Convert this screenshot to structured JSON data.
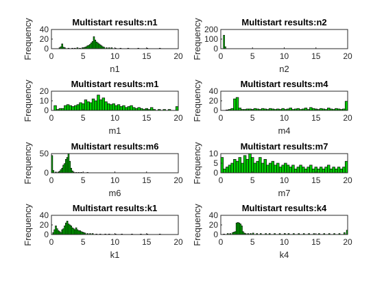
{
  "window": {
    "bar_color": "#00cc00",
    "bar_edge": "#000000"
  },
  "chart_data": [
    {
      "type": "bar",
      "panel": "n1",
      "title": "Multistart results:n1",
      "xlabel": "n1",
      "ylabel": "Frequency",
      "xlim": [
        0,
        20
      ],
      "ylim": [
        0,
        40
      ],
      "xticks": [
        "0",
        "5",
        "10",
        "15",
        "20"
      ],
      "yticks": [
        "0",
        "20",
        "40"
      ],
      "bin_width": 0.2,
      "bins": [
        [
          1.2,
          2
        ],
        [
          1.4,
          4
        ],
        [
          1.6,
          10
        ],
        [
          1.8,
          3
        ],
        [
          2.0,
          2
        ],
        [
          2.6,
          1
        ],
        [
          3.2,
          1
        ],
        [
          3.6,
          1
        ],
        [
          4.0,
          2
        ],
        [
          4.4,
          1
        ],
        [
          4.8,
          2
        ],
        [
          5.0,
          2
        ],
        [
          5.2,
          3
        ],
        [
          5.4,
          4
        ],
        [
          5.6,
          6
        ],
        [
          5.8,
          7
        ],
        [
          6.0,
          9
        ],
        [
          6.2,
          12
        ],
        [
          6.4,
          15
        ],
        [
          6.6,
          25
        ],
        [
          6.8,
          18
        ],
        [
          7.0,
          14
        ],
        [
          7.2,
          12
        ],
        [
          7.4,
          10
        ],
        [
          7.6,
          8
        ],
        [
          7.8,
          6
        ],
        [
          8.0,
          4
        ],
        [
          8.2,
          3
        ],
        [
          8.6,
          2
        ],
        [
          9.0,
          2
        ],
        [
          9.4,
          2
        ],
        [
          10.0,
          1
        ],
        [
          10.8,
          1
        ],
        [
          12.0,
          1
        ],
        [
          13.6,
          1
        ],
        [
          15.0,
          1
        ],
        [
          17.0,
          1
        ]
      ]
    },
    {
      "type": "bar",
      "panel": "n2",
      "title": "Multistart results:n2",
      "xlabel": "n2",
      "ylabel": "Frequency",
      "xlim": [
        0,
        20
      ],
      "ylim": [
        0,
        200
      ],
      "xticks": [
        "0",
        "5",
        "10",
        "15",
        "20"
      ],
      "yticks": [
        "0",
        "100",
        "200"
      ],
      "bin_width": 0.2,
      "bins": [
        [
          0.4,
          140
        ],
        [
          0.6,
          20
        ]
      ]
    },
    {
      "type": "bar",
      "panel": "m1",
      "title": "Multistart results:m1",
      "xlabel": "m1",
      "ylabel": "Frequency",
      "xlim": [
        0,
        20
      ],
      "ylim": [
        0,
        20
      ],
      "xticks": [
        "0",
        "5",
        "10",
        "15",
        "20"
      ],
      "yticks": [
        "0",
        "10",
        "20"
      ],
      "bin_width": 0.4,
      "bins": [
        [
          0.4,
          5
        ],
        [
          0.8,
          1
        ],
        [
          1.2,
          2
        ],
        [
          1.6,
          2
        ],
        [
          2.0,
          5
        ],
        [
          2.4,
          6
        ],
        [
          2.8,
          5
        ],
        [
          3.2,
          4
        ],
        [
          3.6,
          5
        ],
        [
          4.0,
          6
        ],
        [
          4.4,
          8
        ],
        [
          4.8,
          7
        ],
        [
          5.2,
          11
        ],
        [
          5.6,
          9
        ],
        [
          6.0,
          8
        ],
        [
          6.4,
          12
        ],
        [
          6.8,
          10
        ],
        [
          7.2,
          16
        ],
        [
          7.6,
          11
        ],
        [
          8.0,
          13
        ],
        [
          8.4,
          9
        ],
        [
          8.8,
          7
        ],
        [
          9.2,
          6
        ],
        [
          9.6,
          7
        ],
        [
          10.0,
          5
        ],
        [
          10.4,
          6
        ],
        [
          10.8,
          4
        ],
        [
          11.2,
          5
        ],
        [
          11.6,
          3
        ],
        [
          12.0,
          4
        ],
        [
          12.4,
          5
        ],
        [
          12.8,
          3
        ],
        [
          13.2,
          2
        ],
        [
          13.6,
          3
        ],
        [
          14.0,
          2
        ],
        [
          14.4,
          1
        ],
        [
          14.8,
          2
        ],
        [
          15.2,
          1
        ],
        [
          15.6,
          3
        ],
        [
          16.0,
          1
        ],
        [
          16.8,
          1
        ],
        [
          17.6,
          1
        ],
        [
          18.4,
          1
        ],
        [
          19.6,
          4
        ]
      ]
    },
    {
      "type": "bar",
      "panel": "m4",
      "title": "Multistart results:m4",
      "xlabel": "m4",
      "ylabel": "Frequency",
      "xlim": [
        0,
        20
      ],
      "ylim": [
        0,
        40
      ],
      "xticks": [
        "0",
        "5",
        "10",
        "15",
        "20"
      ],
      "yticks": [
        "0",
        "20",
        "40"
      ],
      "bin_width": 0.4,
      "bins": [
        [
          0.8,
          1
        ],
        [
          1.2,
          2
        ],
        [
          1.6,
          4
        ],
        [
          2.0,
          24
        ],
        [
          2.4,
          27
        ],
        [
          2.8,
          5
        ],
        [
          3.2,
          2
        ],
        [
          3.6,
          2
        ],
        [
          4.0,
          3
        ],
        [
          4.4,
          3
        ],
        [
          4.8,
          2
        ],
        [
          5.2,
          4
        ],
        [
          5.6,
          3
        ],
        [
          6.0,
          2
        ],
        [
          6.4,
          4
        ],
        [
          6.8,
          3
        ],
        [
          7.2,
          2
        ],
        [
          7.6,
          4
        ],
        [
          8.0,
          3
        ],
        [
          8.4,
          2
        ],
        [
          8.8,
          3
        ],
        [
          9.2,
          2
        ],
        [
          9.6,
          4
        ],
        [
          10.0,
          2
        ],
        [
          10.4,
          3
        ],
        [
          10.8,
          5
        ],
        [
          11.2,
          2
        ],
        [
          11.6,
          3
        ],
        [
          12.0,
          4
        ],
        [
          12.4,
          2
        ],
        [
          12.8,
          3
        ],
        [
          13.2,
          5
        ],
        [
          13.6,
          2
        ],
        [
          14.0,
          6
        ],
        [
          14.4,
          4
        ],
        [
          14.8,
          3
        ],
        [
          15.2,
          2
        ],
        [
          15.6,
          4
        ],
        [
          16.0,
          3
        ],
        [
          16.4,
          2
        ],
        [
          16.8,
          5
        ],
        [
          17.2,
          3
        ],
        [
          17.6,
          2
        ],
        [
          18.0,
          4
        ],
        [
          18.4,
          3
        ],
        [
          18.8,
          2
        ],
        [
          19.2,
          3
        ],
        [
          19.6,
          19
        ]
      ]
    },
    {
      "type": "bar",
      "panel": "m6",
      "title": "Multistart results:m6",
      "xlabel": "m6",
      "ylabel": "Frequency",
      "xlim": [
        0,
        20
      ],
      "ylim": [
        0,
        50
      ],
      "xticks": [
        "0",
        "5",
        "10",
        "15",
        "20"
      ],
      "yticks": [
        "0",
        "50"
      ],
      "bin_width": 0.2,
      "bins": [
        [
          0.0,
          45
        ],
        [
          0.2,
          6
        ],
        [
          0.6,
          2
        ],
        [
          1.0,
          2
        ],
        [
          1.2,
          4
        ],
        [
          1.4,
          8
        ],
        [
          1.6,
          12
        ],
        [
          1.8,
          20
        ],
        [
          2.0,
          24
        ],
        [
          2.2,
          35
        ],
        [
          2.4,
          40
        ],
        [
          2.6,
          50
        ],
        [
          2.8,
          30
        ],
        [
          3.0,
          12
        ],
        [
          3.2,
          5
        ],
        [
          3.4,
          2
        ],
        [
          3.8,
          1
        ],
        [
          4.2,
          1
        ],
        [
          4.6,
          1
        ],
        [
          5.6,
          1
        ]
      ]
    },
    {
      "type": "bar",
      "panel": "m7",
      "title": "Multistart results:m7",
      "xlabel": "m7",
      "ylabel": "Frequency",
      "xlim": [
        0,
        20
      ],
      "ylim": [
        0,
        10
      ],
      "xticks": [
        "0",
        "5",
        "10",
        "15",
        "20"
      ],
      "yticks": [
        "0",
        "5",
        "10"
      ],
      "bin_width": 0.4,
      "bins": [
        [
          0.0,
          8
        ],
        [
          0.4,
          2
        ],
        [
          0.8,
          3
        ],
        [
          1.2,
          4
        ],
        [
          1.6,
          5
        ],
        [
          2.0,
          7
        ],
        [
          2.4,
          6
        ],
        [
          2.8,
          8
        ],
        [
          3.2,
          5
        ],
        [
          3.6,
          9
        ],
        [
          4.0,
          7
        ],
        [
          4.4,
          10
        ],
        [
          4.8,
          8
        ],
        [
          5.2,
          5
        ],
        [
          5.6,
          6
        ],
        [
          6.0,
          8
        ],
        [
          6.4,
          5
        ],
        [
          6.8,
          7
        ],
        [
          7.2,
          4
        ],
        [
          7.6,
          5
        ],
        [
          8.0,
          6
        ],
        [
          8.4,
          4
        ],
        [
          8.8,
          5
        ],
        [
          9.2,
          3
        ],
        [
          9.6,
          4
        ],
        [
          10.0,
          5
        ],
        [
          10.4,
          4
        ],
        [
          10.8,
          3
        ],
        [
          11.2,
          4
        ],
        [
          11.6,
          2
        ],
        [
          12.0,
          3
        ],
        [
          12.4,
          4
        ],
        [
          12.8,
          3
        ],
        [
          13.2,
          2
        ],
        [
          13.6,
          3
        ],
        [
          14.0,
          4
        ],
        [
          14.4,
          2
        ],
        [
          14.8,
          3
        ],
        [
          15.2,
          2
        ],
        [
          15.6,
          3
        ],
        [
          16.0,
          2
        ],
        [
          16.4,
          3
        ],
        [
          16.8,
          4
        ],
        [
          17.2,
          2
        ],
        [
          17.6,
          3
        ],
        [
          18.0,
          2
        ],
        [
          18.4,
          3
        ],
        [
          18.8,
          2
        ],
        [
          19.2,
          3
        ],
        [
          19.6,
          6
        ]
      ]
    },
    {
      "type": "bar",
      "panel": "k1",
      "title": "Multistart results:k1",
      "xlabel": "k1",
      "ylabel": "Frequency",
      "xlim": [
        0,
        20
      ],
      "ylim": [
        0,
        40
      ],
      "xticks": [
        "0",
        "5",
        "10",
        "15",
        "20"
      ],
      "yticks": [
        "0",
        "20",
        "40"
      ],
      "bin_width": 0.2,
      "bins": [
        [
          0.2,
          4
        ],
        [
          0.4,
          10
        ],
        [
          0.6,
          18
        ],
        [
          0.8,
          12
        ],
        [
          1.0,
          8
        ],
        [
          1.2,
          6
        ],
        [
          1.4,
          4
        ],
        [
          1.6,
          10
        ],
        [
          1.8,
          12
        ],
        [
          2.0,
          18
        ],
        [
          2.2,
          24
        ],
        [
          2.4,
          28
        ],
        [
          2.6,
          22
        ],
        [
          2.8,
          20
        ],
        [
          3.0,
          18
        ],
        [
          3.2,
          14
        ],
        [
          3.4,
          12
        ],
        [
          3.6,
          10
        ],
        [
          3.8,
          14
        ],
        [
          4.0,
          10
        ],
        [
          4.2,
          8
        ],
        [
          4.4,
          8
        ],
        [
          4.6,
          6
        ],
        [
          4.8,
          5
        ],
        [
          5.0,
          4
        ],
        [
          5.2,
          3
        ],
        [
          5.6,
          2
        ],
        [
          6.0,
          2
        ],
        [
          6.4,
          2
        ],
        [
          7.0,
          1
        ],
        [
          7.6,
          1
        ],
        [
          8.4,
          1
        ],
        [
          9.0,
          1
        ],
        [
          10.0,
          1
        ],
        [
          11.0,
          1
        ],
        [
          12.6,
          1
        ],
        [
          14.0,
          1
        ],
        [
          15.0,
          1
        ],
        [
          17.0,
          1
        ]
      ]
    },
    {
      "type": "bar",
      "panel": "k4",
      "title": "Multistart results:k4",
      "xlabel": "k4",
      "ylabel": "Frequency",
      "xlim": [
        0,
        20
      ],
      "ylim": [
        0,
        40
      ],
      "xticks": [
        "0",
        "5",
        "10",
        "15",
        "20"
      ],
      "yticks": [
        "0",
        "20",
        "40"
      ],
      "bin_width": 0.2,
      "bins": [
        [
          0.4,
          1
        ],
        [
          1.0,
          2
        ],
        [
          1.4,
          2
        ],
        [
          1.8,
          4
        ],
        [
          2.0,
          5
        ],
        [
          2.2,
          6
        ],
        [
          2.4,
          24
        ],
        [
          2.6,
          25
        ],
        [
          2.8,
          24
        ],
        [
          3.0,
          22
        ],
        [
          3.2,
          18
        ],
        [
          3.4,
          6
        ],
        [
          3.6,
          3
        ],
        [
          3.8,
          2
        ],
        [
          4.2,
          2
        ],
        [
          4.6,
          2
        ],
        [
          5.0,
          3
        ],
        [
          5.6,
          2
        ],
        [
          6.2,
          2
        ],
        [
          7.0,
          2
        ],
        [
          7.6,
          2
        ],
        [
          8.4,
          2
        ],
        [
          9.2,
          2
        ],
        [
          10.0,
          2
        ],
        [
          10.6,
          2
        ],
        [
          11.4,
          2
        ],
        [
          12.2,
          2
        ],
        [
          13.0,
          2
        ],
        [
          13.8,
          2
        ],
        [
          14.6,
          2
        ],
        [
          15.4,
          2
        ],
        [
          16.2,
          2
        ],
        [
          17.0,
          2
        ],
        [
          17.8,
          2
        ],
        [
          18.6,
          2
        ],
        [
          19.4,
          4
        ],
        [
          19.8,
          9
        ]
      ]
    }
  ]
}
